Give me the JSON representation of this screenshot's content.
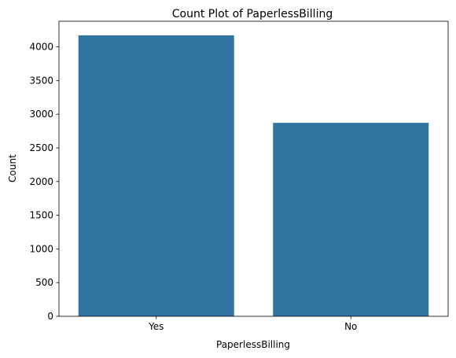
{
  "chart_data": {
    "type": "bar",
    "title": "Count Plot of PaperlessBilling",
    "xlabel": "PaperlessBilling",
    "ylabel": "Count",
    "categories": [
      "Yes",
      "No"
    ],
    "values": [
      4171,
      2872
    ],
    "ylim": [
      0,
      4380
    ],
    "yticks": [
      0,
      500,
      1000,
      1500,
      2000,
      2500,
      3000,
      3500,
      4000
    ],
    "grid": false,
    "bar_color": "#3274a1"
  }
}
